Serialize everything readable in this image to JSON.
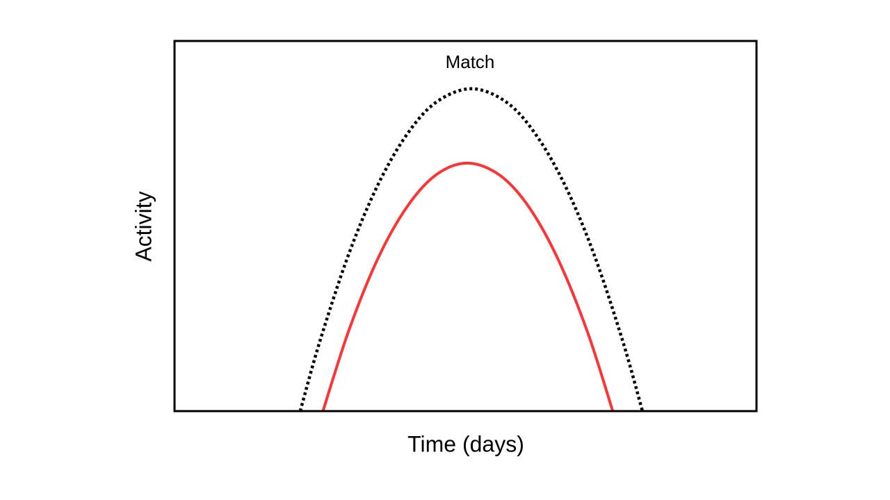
{
  "chart_data": {
    "type": "line",
    "title": "Match",
    "x_label": "Time (days)",
    "y_label": "Activity",
    "xlim": [
      0,
      100
    ],
    "ylim": [
      0,
      100
    ],
    "series": [
      {
        "style": "dotted",
        "color": "#000000",
        "x": [
          21.6,
          25,
          30,
          35,
          40,
          45,
          51,
          57,
          62,
          67,
          72,
          77,
          80.4
        ],
        "values": [
          0,
          19.0,
          42.7,
          61.3,
          74.9,
          83.5,
          87.1,
          83.5,
          74.9,
          61.3,
          42.7,
          19.0,
          0
        ]
      },
      {
        "style": "solid",
        "color": "#ff3333",
        "x": [
          25.5,
          30,
          35,
          40,
          45,
          50.4,
          56,
          61,
          66,
          71,
          75.3
        ],
        "values": [
          0,
          22.0,
          41.4,
          55.3,
          63.9,
          67.0,
          63.6,
          54.9,
          40.7,
          21.2,
          0
        ]
      }
    ]
  }
}
